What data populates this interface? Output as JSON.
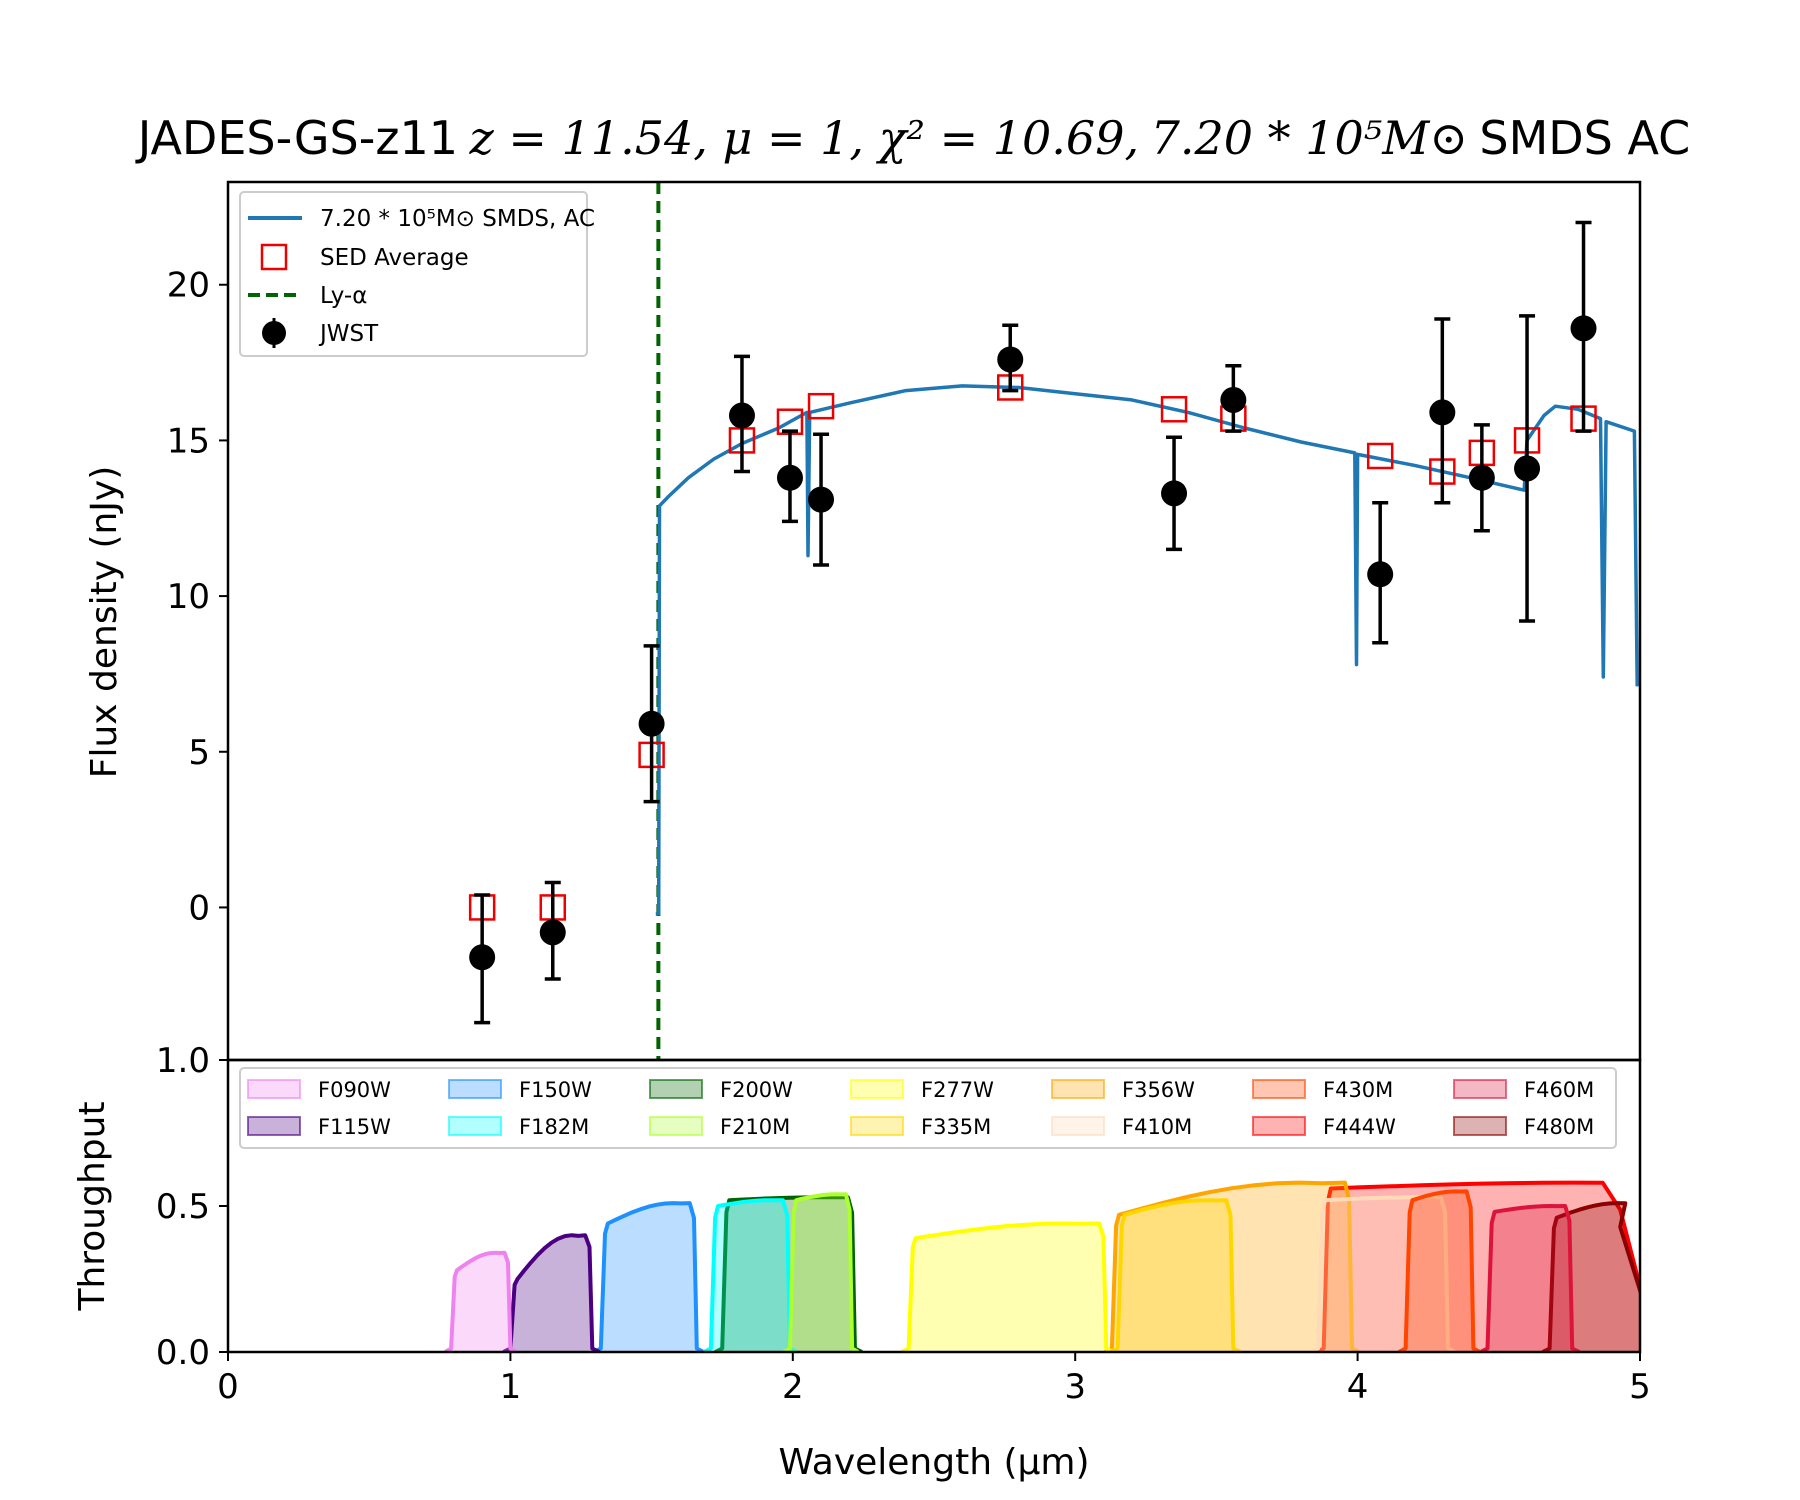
{
  "chart_data": {
    "title": {
      "object": "JADES-GS-z11",
      "fit": "z = 11.54, μ = 1, χ² = 10.69,",
      "mass": "7.20 * 10⁵M⊙",
      "model": "SMDS AC"
    },
    "xlabel": "Wavelength (μm)",
    "top_panel": {
      "type": "scatter",
      "ylabel": "Flux density (nJy)",
      "xlim": [
        0,
        5
      ],
      "ylim": [
        -4.9,
        23.3
      ],
      "yticks": [
        "0",
        "5",
        "10",
        "15",
        "20"
      ],
      "legend": {
        "position": "top-left",
        "model_label": "7.20 * 10⁵M⊙ SMDS, AC",
        "sed_label": "SED Average",
        "lya_label": "Ly-α",
        "jwst_label": "JWST"
      },
      "lya_wavelength": 1.524,
      "model_curve": [
        [
          1.515,
          -0.2
        ],
        [
          1.525,
          -0.2
        ],
        [
          1.528,
          12.9
        ],
        [
          1.56,
          13.2
        ],
        [
          1.63,
          13.8
        ],
        [
          1.72,
          14.4
        ],
        [
          1.82,
          14.9
        ],
        [
          1.95,
          15.4
        ],
        [
          2.05,
          15.9
        ],
        [
          2.054,
          11.3
        ],
        [
          2.06,
          15.9
        ],
        [
          2.2,
          16.2
        ],
        [
          2.4,
          16.6
        ],
        [
          2.6,
          16.75
        ],
        [
          2.8,
          16.7
        ],
        [
          3.0,
          16.5
        ],
        [
          3.2,
          16.3
        ],
        [
          3.4,
          15.9
        ],
        [
          3.6,
          15.4
        ],
        [
          3.8,
          14.95
        ],
        [
          3.99,
          14.6
        ],
        [
          3.996,
          7.8
        ],
        [
          4.0,
          14.55
        ],
        [
          4.2,
          14.2
        ],
        [
          4.4,
          13.8
        ],
        [
          4.59,
          13.4
        ],
        [
          4.6,
          15.0
        ],
        [
          4.66,
          15.8
        ],
        [
          4.7,
          16.1
        ],
        [
          4.78,
          16.0
        ],
        [
          4.86,
          15.7
        ],
        [
          4.87,
          7.4
        ],
        [
          4.88,
          15.6
        ],
        [
          4.98,
          15.3
        ],
        [
          4.99,
          7.1
        ]
      ],
      "sed_average": [
        [
          0.9,
          0.0
        ],
        [
          1.15,
          0.0
        ],
        [
          1.5,
          4.9
        ],
        [
          1.82,
          15.0
        ],
        [
          1.99,
          15.6
        ],
        [
          2.1,
          16.1
        ],
        [
          2.77,
          16.7
        ],
        [
          3.35,
          16.0
        ],
        [
          3.56,
          15.7
        ],
        [
          4.08,
          14.5
        ],
        [
          4.3,
          14.0
        ],
        [
          4.44,
          14.6
        ],
        [
          4.6,
          15.0
        ],
        [
          4.8,
          15.7
        ]
      ],
      "jwst": [
        {
          "x": 0.9,
          "y": -1.6,
          "lo": -3.7,
          "hi": 0.4
        },
        {
          "x": 1.15,
          "y": -0.8,
          "lo": -2.3,
          "hi": 0.8
        },
        {
          "x": 1.5,
          "y": 5.9,
          "lo": 3.4,
          "hi": 8.4
        },
        {
          "x": 1.82,
          "y": 15.8,
          "lo": 14.0,
          "hi": 17.7
        },
        {
          "x": 1.99,
          "y": 13.8,
          "lo": 12.4,
          "hi": 15.3
        },
        {
          "x": 2.1,
          "y": 13.1,
          "lo": 11.0,
          "hi": 15.2
        },
        {
          "x": 2.77,
          "y": 17.6,
          "lo": 16.6,
          "hi": 18.7
        },
        {
          "x": 3.35,
          "y": 13.3,
          "lo": 11.5,
          "hi": 15.1
        },
        {
          "x": 3.56,
          "y": 16.3,
          "lo": 15.3,
          "hi": 17.4
        },
        {
          "x": 4.08,
          "y": 10.7,
          "lo": 8.5,
          "hi": 13.0
        },
        {
          "x": 4.3,
          "y": 15.9,
          "lo": 13.0,
          "hi": 18.9
        },
        {
          "x": 4.44,
          "y": 13.8,
          "lo": 12.1,
          "hi": 15.5
        },
        {
          "x": 4.6,
          "y": 14.1,
          "lo": 9.2,
          "hi": 19.0
        },
        {
          "x": 4.8,
          "y": 18.6,
          "lo": 15.3,
          "hi": 22.0
        }
      ]
    },
    "bottom_panel": {
      "type": "area",
      "ylabel": "Throughput",
      "xlim": [
        0,
        5
      ],
      "ylim": [
        0,
        1.0
      ],
      "yticks": [
        "0.0",
        "0.5",
        "1.0"
      ],
      "xticks": [
        "0",
        "1",
        "2",
        "3",
        "4",
        "5"
      ],
      "filters": [
        {
          "name": "F090W",
          "color": "#ee82ee",
          "lo": 0.79,
          "hi": 1.0,
          "peak": 0.34,
          "rise": 0.28
        },
        {
          "name": "F115W",
          "color": "#4b0082",
          "lo": 1.0,
          "hi": 1.29,
          "peak": 0.4,
          "rise": 0.25
        },
        {
          "name": "F150W",
          "color": "#1e90ff",
          "lo": 1.32,
          "hi": 1.66,
          "peak": 0.51,
          "rise": 0.44
        },
        {
          "name": "F182M",
          "color": "#00ffff",
          "lo": 1.71,
          "hi": 1.99,
          "peak": 0.52,
          "rise": 0.5
        },
        {
          "name": "F200W",
          "color": "#006400",
          "lo": 1.75,
          "hi": 2.22,
          "peak": 0.53,
          "rise": 0.52
        },
        {
          "name": "F210M",
          "color": "#adff2f",
          "lo": 1.99,
          "hi": 2.21,
          "peak": 0.54,
          "rise": 0.52
        },
        {
          "name": "F277W",
          "color": "#ffff00",
          "lo": 2.41,
          "hi": 3.11,
          "peak": 0.44,
          "rise": 0.39
        },
        {
          "name": "F335M",
          "color": "#ffd700",
          "lo": 3.15,
          "hi": 3.56,
          "peak": 0.52,
          "rise": 0.47
        },
        {
          "name": "F356W",
          "color": "#ffa500",
          "lo": 3.13,
          "hi": 3.98,
          "peak": 0.58,
          "rise": 0.47
        },
        {
          "name": "F410M",
          "color": "#ffdab9",
          "lo": 3.86,
          "hi": 4.32,
          "peak": 0.53,
          "rise": 0.52
        },
        {
          "name": "F430M",
          "color": "#ff4500",
          "lo": 4.17,
          "hi": 4.41,
          "peak": 0.55,
          "rise": 0.52
        },
        {
          "name": "F444W",
          "color": "#ff0000",
          "lo": 3.88,
          "hi": 5.0,
          "peak": 0.58,
          "rise": 0.56
        },
        {
          "name": "F460M",
          "color": "#dc143c",
          "lo": 4.46,
          "hi": 4.76,
          "peak": 0.5,
          "rise": 0.48
        },
        {
          "name": "F480M",
          "color": "#8b0000",
          "lo": 4.68,
          "hi": 5.0,
          "peak": 0.51,
          "rise": 0.46
        }
      ]
    }
  }
}
